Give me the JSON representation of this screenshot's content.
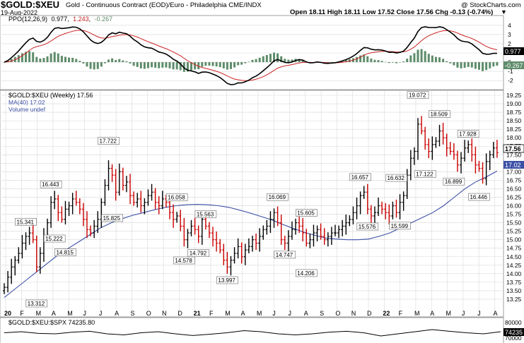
{
  "header": {
    "symbol": "$GOLD:$XEU",
    "description": "Gold - Continuous Contract (EOD)/Euro - Philadelphia CME/INDX",
    "watermark": "@ StockCharts.com",
    "date": "19-Aug-2022",
    "ohlc": "Open 18.11  High 18.11  Low 17.52  Close 17.56  Chg -0.13 (-0.74%)",
    "up_marker": "▼"
  },
  "ppo_panel": {
    "legend": "PPO(12,26,9)",
    "ppo_value": "0.977",
    "signal_value": "1.243",
    "hist_value": "-0.267",
    "ticks": [
      "4",
      "3",
      "2",
      "1",
      "0",
      "-1",
      "-2"
    ],
    "ppo_tag": "0.977",
    "hist_tag": "-0.267"
  },
  "main_panel": {
    "legend_price": "$GOLD:$XEU (Weekly) 17.56",
    "legend_ma": "MA(40) 17.02",
    "legend_volume": "Volume undef",
    "price_tag": "17.56",
    "ma_tag": "17.02"
  },
  "bottom_panel": {
    "legend": "$GOLD:$XEU:$SPX 74235.80",
    "ticks": [
      "80000",
      "70000"
    ],
    "tag": "74235"
  },
  "colors": {
    "up": "#000000",
    "down": "#cc0000",
    "ma": "#3b4fa5",
    "ppo_line": "#000000",
    "signal_line": "#cc2222",
    "histogram": "#5e8c6a",
    "grid": "#d8d8d8"
  },
  "chart_data": {
    "type": "ohlc",
    "title": "$GOLD:$XEU (Weekly)",
    "ylim": [
      13.0,
      19.25
    ],
    "y_ticks": [
      "19.25",
      "19.00",
      "18.75",
      "18.50",
      "18.25",
      "18.00",
      "17.75",
      "17.50",
      "17.25",
      "17.00",
      "16.75",
      "16.50",
      "16.25",
      "16.00",
      "15.75",
      "15.50",
      "15.25",
      "15.00",
      "14.75",
      "14.50",
      "14.25",
      "14.00",
      "13.75",
      "13.50",
      "13.25"
    ],
    "x_labels": [
      "20",
      "F",
      "M",
      "A",
      "M",
      "J",
      "J",
      "A",
      "S",
      "O",
      "N",
      "D",
      "21",
      "F",
      "M",
      "A",
      "M",
      "J",
      "J",
      "A",
      "S",
      "O",
      "N",
      "D",
      "22",
      "F",
      "M",
      "A",
      "M",
      "J",
      "J",
      "A"
    ],
    "annotations": [
      {
        "label": "15.341",
        "value": 15.341,
        "week": 6
      },
      {
        "label": "13.312",
        "value": 13.312,
        "week": 9
      },
      {
        "label": "16.443",
        "value": 16.443,
        "week": 13
      },
      {
        "label": "15.222",
        "value": 15.222,
        "week": 14
      },
      {
        "label": "14.815",
        "value": 14.815,
        "week": 17
      },
      {
        "label": "17.722",
        "value": 17.722,
        "week": 29
      },
      {
        "label": "15.825",
        "value": 15.825,
        "week": 30
      },
      {
        "label": "16.058",
        "value": 16.058,
        "week": 48
      },
      {
        "label": "14.578",
        "value": 14.578,
        "week": 50
      },
      {
        "label": "14.792",
        "value": 14.792,
        "week": 54
      },
      {
        "label": "15.563",
        "value": 15.563,
        "week": 56
      },
      {
        "label": "13.997",
        "value": 13.997,
        "week": 62
      },
      {
        "label": "16.069",
        "value": 16.069,
        "week": 76
      },
      {
        "label": "14.747",
        "value": 14.747,
        "week": 78
      },
      {
        "label": "15.605",
        "value": 15.605,
        "week": 84
      },
      {
        "label": "14.206",
        "value": 14.206,
        "week": 84
      },
      {
        "label": "16.657",
        "value": 16.657,
        "week": 99
      },
      {
        "label": "15.576",
        "value": 15.576,
        "week": 101
      },
      {
        "label": "15.599",
        "value": 15.599,
        "week": 110
      },
      {
        "label": "16.632",
        "value": 16.632,
        "week": 109
      },
      {
        "label": "19.072",
        "value": 19.072,
        "week": 115
      },
      {
        "label": "17.122",
        "value": 17.122,
        "week": 117
      },
      {
        "label": "18.509",
        "value": 18.509,
        "week": 121
      },
      {
        "label": "16.899",
        "value": 16.899,
        "week": 125
      },
      {
        "label": "17.928",
        "value": 17.928,
        "week": 129
      },
      {
        "label": "16.446",
        "value": 16.446,
        "week": 132
      }
    ],
    "series": [
      {
        "name": "$GOLD:$XEU (Weekly)",
        "closes": [
          13.6,
          13.9,
          14.2,
          14.4,
          14.6,
          14.9,
          15.1,
          15.2,
          15.0,
          14.2,
          14.6,
          15.1,
          15.5,
          16.1,
          16.2,
          15.8,
          15.6,
          15.9,
          16.0,
          16.2,
          16.1,
          15.9,
          15.6,
          15.3,
          15.2,
          15.4,
          15.6,
          16.1,
          16.6,
          17.1,
          16.9,
          16.4,
          17.0,
          16.6,
          16.7,
          16.3,
          16.1,
          16.2,
          16.0,
          16.1,
          16.3,
          16.4,
          16.1,
          16.0,
          16.2,
          16.1,
          15.8,
          15.6,
          15.7,
          15.4,
          15.0,
          15.2,
          15.4,
          15.3,
          15.1,
          15.6,
          15.4,
          15.2,
          15.0,
          14.9,
          14.7,
          14.4,
          14.2,
          14.4,
          14.6,
          14.8,
          14.5,
          14.7,
          14.8,
          15.0,
          14.9,
          15.1,
          15.3,
          15.4,
          15.6,
          15.8,
          15.5,
          15.0,
          14.9,
          15.1,
          15.3,
          15.5,
          15.4,
          15.2,
          14.9,
          15.0,
          15.2,
          15.3,
          15.1,
          15.0,
          15.1,
          15.2,
          15.2,
          15.3,
          15.4,
          15.5,
          15.6,
          15.8,
          16.0,
          16.3,
          16.4,
          15.9,
          15.7,
          15.8,
          16.0,
          15.9,
          15.8,
          15.7,
          16.0,
          15.8,
          16.1,
          16.3,
          16.9,
          17.4,
          17.6,
          18.4,
          18.2,
          17.8,
          17.6,
          17.8,
          17.9,
          18.2,
          18.0,
          17.7,
          17.6,
          17.5,
          17.2,
          17.4,
          17.7,
          17.8,
          17.5,
          17.2,
          17.1,
          16.8,
          17.3,
          17.5,
          17.7,
          17.56
        ]
      },
      {
        "name": "MA(40)",
        "values": [
          13.3,
          13.55,
          13.8,
          14.05,
          14.3,
          14.55,
          14.75,
          14.95,
          15.15,
          15.35,
          15.5,
          15.62,
          15.72,
          15.8,
          15.88,
          15.95,
          16.0,
          16.03,
          16.04,
          16.03,
          16.0,
          15.95,
          15.87,
          15.78,
          15.68,
          15.58,
          15.45,
          15.33,
          15.22,
          15.13,
          15.05,
          15.02,
          15.0,
          15.0,
          15.02,
          15.1,
          15.2,
          15.35,
          15.5,
          15.65,
          15.8,
          16.0,
          16.25,
          16.5,
          16.7,
          16.85,
          17.02
        ]
      }
    ]
  }
}
